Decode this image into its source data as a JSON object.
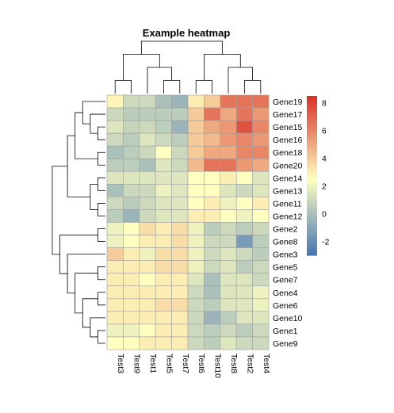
{
  "chart_data": {
    "type": "heatmap",
    "title": "Example heatmap",
    "columns": [
      "Test3",
      "Test9",
      "Test1",
      "Test5",
      "Test7",
      "Test6",
      "Test10",
      "Test8",
      "Test2",
      "Test4"
    ],
    "rows": [
      "Gene19",
      "Gene17",
      "Gene15",
      "Gene16",
      "Gene18",
      "Gene20",
      "Gene14",
      "Gene13",
      "Gene11",
      "Gene12",
      "Gene2",
      "Gene8",
      "Gene3",
      "Gene5",
      "Gene7",
      "Gene4",
      "Gene6",
      "Gene10",
      "Gene1",
      "Gene9"
    ],
    "values": [
      [
        2.8,
        1.0,
        1.0,
        0.0,
        -0.5,
        3.0,
        4.0,
        6.5,
        6.5,
        6.5
      ],
      [
        1.0,
        0.5,
        0.5,
        0.5,
        0.5,
        4.0,
        6.5,
        5.0,
        6.5,
        5.5
      ],
      [
        1.5,
        0.8,
        1.0,
        0.5,
        -0.5,
        4.0,
        5.0,
        5.5,
        7.5,
        6.0
      ],
      [
        1.0,
        0.5,
        1.5,
        1.0,
        0.5,
        4.0,
        4.5,
        5.5,
        6.0,
        5.5
      ],
      [
        0.0,
        0.5,
        1.0,
        2.5,
        1.0,
        4.0,
        5.0,
        5.0,
        6.0,
        6.0
      ],
      [
        0.5,
        0.5,
        0.0,
        1.5,
        1.0,
        4.5,
        6.5,
        6.5,
        5.5,
        5.0
      ],
      [
        1.5,
        1.5,
        1.5,
        1.5,
        1.5,
        2.5,
        2.5,
        3.0,
        2.5,
        1.5
      ],
      [
        0.0,
        1.0,
        1.0,
        2.0,
        1.5,
        2.5,
        2.5,
        1.5,
        1.0,
        1.5
      ],
      [
        1.0,
        0.5,
        1.0,
        1.5,
        1.5,
        2.5,
        3.0,
        2.0,
        2.5,
        3.0
      ],
      [
        0.5,
        -0.5,
        1.0,
        1.5,
        1.5,
        3.0,
        3.0,
        2.5,
        2.0,
        2.5
      ],
      [
        2.0,
        2.5,
        3.5,
        3.0,
        3.5,
        2.0,
        0.5,
        1.0,
        0.5,
        1.0
      ],
      [
        2.0,
        2.5,
        3.0,
        3.0,
        3.5,
        2.0,
        1.0,
        1.0,
        -1.5,
        0.5
      ],
      [
        4.0,
        3.0,
        2.0,
        3.5,
        3.5,
        2.0,
        1.0,
        1.5,
        1.0,
        0.5
      ],
      [
        3.0,
        3.0,
        3.0,
        3.5,
        3.5,
        2.0,
        1.0,
        1.5,
        0.5,
        1.0
      ],
      [
        3.0,
        3.0,
        2.5,
        3.0,
        3.0,
        1.5,
        0.0,
        1.5,
        1.5,
        1.0
      ],
      [
        3.0,
        3.0,
        3.0,
        3.0,
        3.0,
        1.0,
        0.0,
        1.5,
        1.5,
        2.0
      ],
      [
        3.0,
        3.0,
        3.0,
        3.5,
        3.5,
        1.0,
        0.5,
        1.5,
        1.5,
        2.0
      ],
      [
        3.0,
        3.0,
        3.0,
        3.0,
        3.0,
        1.0,
        -0.5,
        0.5,
        1.5,
        1.5
      ],
      [
        2.0,
        2.0,
        2.5,
        3.0,
        3.0,
        1.0,
        0.5,
        1.0,
        0.5,
        1.0
      ],
      [
        2.5,
        2.5,
        3.0,
        3.0,
        3.0,
        1.0,
        0.5,
        1.5,
        1.0,
        1.0
      ]
    ],
    "legend": {
      "min": -3,
      "max": 8.5,
      "ticks": [
        "-2",
        "0",
        "2",
        "4",
        "6",
        "8"
      ],
      "placement": "right"
    },
    "colors": {
      "low": "#4575b4",
      "mid": "#ffffbf",
      "high": "#d73027",
      "cell_border": "#a0a0a0",
      "dendrogram": "#000000"
    },
    "column_dendrogram": "(((Test3,Test9),(Test1,(Test5,Test7))),((Test6,Test10),(Test8,(Test2,Test4))))",
    "row_dendrogram": "((((Gene19,(Gene17,(Gene15,Gene16))),(Gene18,Gene20)),((Gene14,Gene13),(Gene11,Gene12))),((Gene2,Gene8),(Gene3,((Gene5,Gene7),((Gene4,Gene6),(Gene10,(Gene1,Gene9)))))))"
  }
}
